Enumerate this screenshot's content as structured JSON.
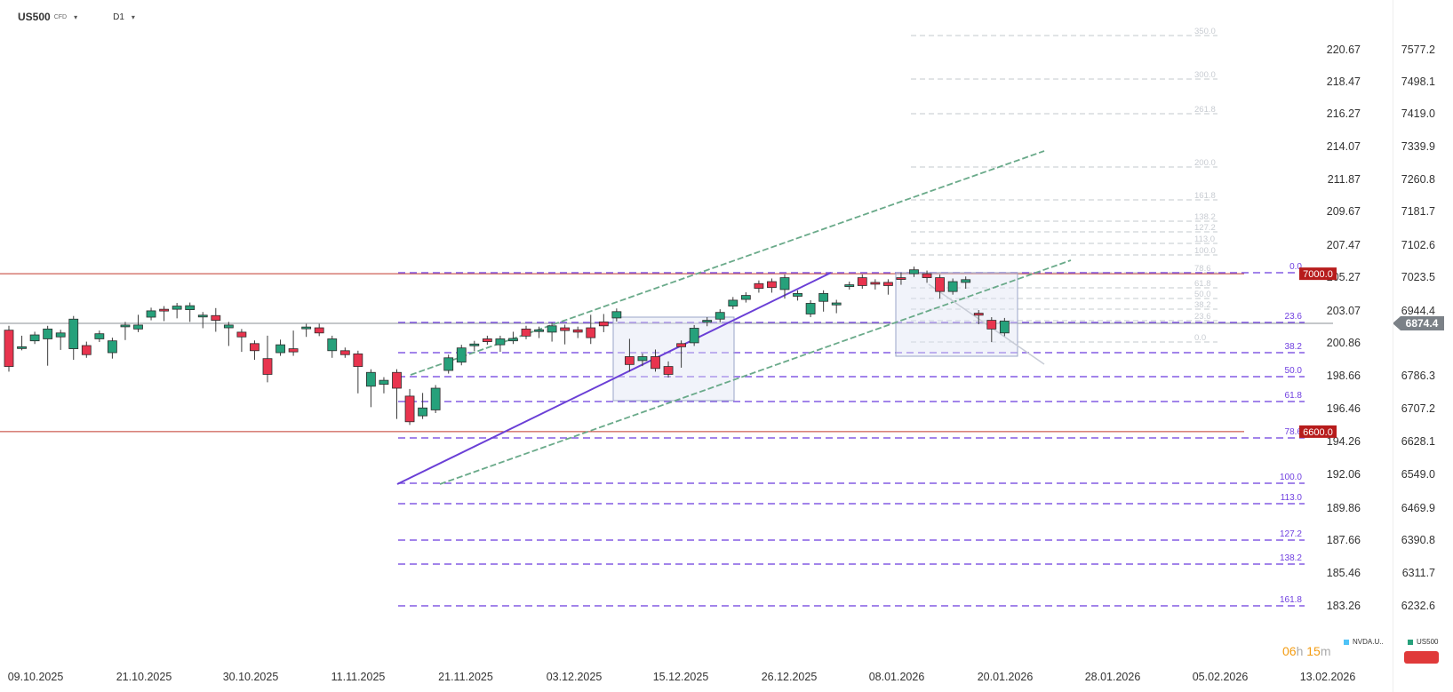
{
  "header": {
    "symbol": "US500",
    "symbol_type": "CFD",
    "timeframe": "D1",
    "caret": "▾"
  },
  "timer": {
    "hours": "06",
    "h_unit": "h",
    "minutes": "15",
    "m_unit": "m"
  },
  "legend": [
    {
      "label": "NVDA.U..",
      "color": "#4fc3f7"
    },
    {
      "label": "US500",
      "color": "#26a17b"
    }
  ],
  "chart_data": {
    "type": "candlestick",
    "colors": {
      "up": "#26a17b",
      "down": "#e8344e",
      "fib": "#6f3fe0",
      "channel": "#6aaa8a",
      "level": "#c0392b"
    },
    "x_ticks": [
      "09.10.2025",
      "21.10.2025",
      "30.10.2025",
      "11.11.2025",
      "21.11.2025",
      "03.12.2025",
      "15.12.2025",
      "26.12.2025",
      "08.01.2026",
      "20.01.2026",
      "28.01.2026",
      "05.02.2026",
      "13.02.2026"
    ],
    "y_axis_left": {
      "range": [
        181.06,
        222.87
      ],
      "ticks": [
        "220.67",
        "218.47",
        "216.27",
        "214.07",
        "211.87",
        "209.67",
        "207.47",
        "205.27",
        "203.07",
        "200.86",
        "198.66",
        "196.46",
        "194.26",
        "192.06",
        "189.86",
        "187.66",
        "185.46",
        "183.26"
      ]
    },
    "y_axis_right": {
      "range": [
        6153.4,
        7656.3
      ],
      "ticks": [
        "7577.2",
        "7498.1",
        "7419.0",
        "7339.9",
        "7260.8",
        "7181.7",
        "7102.6",
        "7023.5",
        "6944.4",
        "6865.3",
        "6786.3",
        "6707.2",
        "6628.1",
        "6549.0",
        "6469.9",
        "6390.8",
        "6311.7",
        "6232.6"
      ]
    },
    "last_price": "6874.4",
    "horizontal_levels": [
      {
        "value": 7000.0,
        "label": "7000.0"
      },
      {
        "value": 6600.0,
        "label": "6600.0"
      }
    ],
    "candles": [
      [
        6857,
        6860,
        6765,
        6760
      ],
      [
        6814,
        6835,
        6815,
        6838
      ],
      [
        6830,
        6840,
        6845,
        6855
      ],
      [
        6835,
        6780,
        6860,
        6775
      ],
      [
        6840,
        6820,
        6850,
        6815
      ],
      [
        6810,
        6795,
        6885,
        6790
      ],
      [
        6818,
        6820,
        6795,
        6880
      ],
      [
        6835,
        6830,
        6848,
        6840
      ],
      [
        6800,
        6820,
        6830,
        6793
      ],
      [
        6868,
        6840,
        6870,
        6840
      ],
      [
        6860,
        6888,
        6870,
        6870
      ],
      [
        6890,
        6890,
        6906,
        6911
      ],
      [
        6910,
        6890,
        6909,
        6888
      ],
      [
        6910,
        6904,
        6918,
        6895
      ],
      [
        6909,
        6898,
        6919,
        6886
      ],
      [
        6891,
        6875,
        6895,
        6870
      ],
      [
        6894,
        6905,
        6882,
        6861
      ],
      [
        6863,
        6850,
        6870,
        6825
      ],
      [
        6852,
        6822,
        6840,
        6810
      ],
      [
        6823,
        6790,
        6805,
        6790
      ],
      [
        6785,
        6835,
        6745,
        6733
      ],
      [
        6800,
        6825,
        6820,
        6815
      ],
      [
        6810,
        6848,
        6802,
        6800
      ],
      [
        6865,
        6840,
        6865,
        6848
      ],
      [
        6863,
        6865,
        6850,
        6860
      ],
      [
        6805,
        6800,
        6835,
        6795
      ],
      [
        6805,
        6805,
        6795,
        6795
      ],
      [
        6797,
        6705,
        6765,
        6705
      ],
      [
        6715,
        6675,
        6750,
        6670
      ],
      [
        6720,
        6720,
        6730,
        6705
      ],
      [
        6750,
        6670,
        6710,
        6640
      ],
      [
        6690,
        6700,
        6625,
        6625
      ],
      [
        6640,
        6690,
        6660,
        6640
      ],
      [
        6655,
        6700,
        6710,
        6700
      ],
      [
        6755,
        6750,
        6787,
        6790
      ],
      [
        6776,
        6804,
        6812,
        6810
      ],
      [
        6822,
        6820,
        6822,
        6812
      ],
      [
        6835,
        6820,
        6828,
        6830
      ],
      [
        6820,
        6818,
        6835,
        6810
      ],
      [
        6830,
        6845,
        6836,
        6830
      ],
      [
        6860,
        6840,
        6842,
        6845
      ],
      [
        6855,
        6845,
        6858,
        6845
      ],
      [
        6852,
        6840,
        6868,
        6836
      ],
      [
        6863,
        6830,
        6856,
        6829
      ],
      [
        6858,
        6831,
        6852,
        6845
      ],
      [
        6863,
        6888,
        6838,
        6830
      ],
      [
        6878,
        6890,
        6868,
        6860
      ],
      [
        6888,
        6880,
        6904,
        6887
      ],
      [
        6790,
        6827,
        6770,
        6760
      ],
      [
        6780,
        6785,
        6790,
        6774
      ],
      [
        6790,
        6800,
        6760,
        6800
      ],
      [
        6765,
        6770,
        6745,
        6773
      ],
      [
        6823,
        6775,
        6815,
        6770
      ],
      [
        6825,
        6810,
        6862,
        6840
      ],
      [
        6880,
        6870,
        6882,
        6875
      ],
      [
        6885,
        6880,
        6902,
        6898
      ],
      [
        6918,
        6906,
        6933,
        6935
      ],
      [
        6935,
        6930,
        6945,
        6943
      ],
      [
        6975,
        6968,
        6963,
        6960
      ],
      [
        6980,
        6972,
        6965,
        6960
      ],
      [
        6960,
        6950,
        6990,
        6945
      ],
      [
        6943,
        6930,
        6950,
        6940
      ],
      [
        6898,
        6878,
        6925,
        6930
      ],
      [
        6930,
        6905,
        6950,
        6912
      ],
      [
        6921,
        6902,
        6926,
        6908
      ],
      [
        6968,
        6972,
        6972,
        6968
      ],
      [
        6990,
        6977,
        6970,
        6982
      ],
      [
        6978,
        6958,
        6975,
        6968
      ],
      [
        6978,
        6967,
        6970,
        6955
      ],
      [
        6990,
        6995,
        6988,
        6980
      ],
      [
        7000,
        7005,
        7010,
        7005
      ],
      [
        7000,
        6985,
        6990,
        6985
      ],
      [
        6990,
        6950,
        6955,
        6945
      ],
      [
        6955,
        6970,
        6980,
        6975
      ],
      [
        6978,
        6965,
        6985,
        6970
      ],
      [
        6900,
        6890,
        6895,
        6880
      ],
      [
        6882,
        6835,
        6860,
        6835
      ],
      [
        6850,
        6860,
        6880,
        6870
      ]
    ],
    "fib_right": {
      "levels": [
        "0.0",
        "23.6",
        "38.2",
        "50.0",
        "61.8",
        "78.6",
        "100.0",
        "113.0",
        "127.2",
        "138.2",
        "161.8"
      ],
      "top": 7020,
      "bottom": 6580
    },
    "fib_faded": {
      "levels": [
        "350.0",
        "300.0",
        "261.8",
        "200.0",
        "161.8",
        "138.2",
        "127.2",
        "113.0",
        "100.0",
        "78.6",
        "61.8",
        "50.0",
        "38.2",
        "23.6",
        "0.0"
      ]
    }
  }
}
